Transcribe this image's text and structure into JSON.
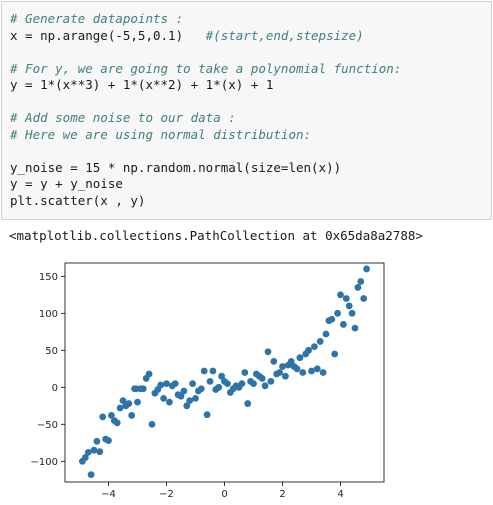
{
  "code_lines": [
    [
      {
        "t": "# Generate datapoints :",
        "c": "cm"
      }
    ],
    [
      {
        "t": "x = np.arange(-5,5,0.1)   ",
        "c": ""
      },
      {
        "t": "#(start,end,stepsize)",
        "c": "cm"
      }
    ],
    [
      {
        "t": "",
        "c": ""
      }
    ],
    [
      {
        "t": "# For y, we are going to take a polynomial function:",
        "c": "cm"
      }
    ],
    [
      {
        "t": "y = 1*(x**3) + 1*(x**2) + 1*(x) + 1",
        "c": ""
      }
    ],
    [
      {
        "t": "",
        "c": ""
      }
    ],
    [
      {
        "t": "# Add some noise to our data :",
        "c": "cm"
      }
    ],
    [
      {
        "t": "# Here we are using normal distribution:",
        "c": "cm"
      }
    ],
    [
      {
        "t": "",
        "c": ""
      }
    ],
    [
      {
        "t": "y_noise = 15 * np.random.normal(size=len(x))",
        "c": ""
      }
    ],
    [
      {
        "t": "y = y + y_noise",
        "c": ""
      }
    ],
    [
      {
        "t": "plt.scatter(x , y)",
        "c": ""
      }
    ]
  ],
  "output_text": "<matplotlib.collections.PathCollection at 0x65da8a2788>",
  "chart_data": {
    "type": "scatter",
    "xlim": [
      -5.5,
      5.5
    ],
    "ylim": [
      -128,
      168
    ],
    "xticks": [
      -4,
      -2,
      0,
      2,
      4
    ],
    "yticks": [
      -100,
      -50,
      0,
      50,
      100,
      150
    ],
    "xtick_labels": [
      "−4",
      "−2",
      "0",
      "2",
      "4"
    ],
    "ytick_labels": [
      "−100",
      "−50",
      "0",
      "50",
      "100",
      "150"
    ],
    "grid": false,
    "point_color": "#2f74a8",
    "points": [
      [
        -4.9,
        -100
      ],
      [
        -4.8,
        -95
      ],
      [
        -4.7,
        -88
      ],
      [
        -4.6,
        -118
      ],
      [
        -4.5,
        -85
      ],
      [
        -4.4,
        -73
      ],
      [
        -4.3,
        -87
      ],
      [
        -4.2,
        -40
      ],
      [
        -4.1,
        -70
      ],
      [
        -4.0,
        -72
      ],
      [
        -3.9,
        -38
      ],
      [
        -3.8,
        -45
      ],
      [
        -3.7,
        -48
      ],
      [
        -3.6,
        -28
      ],
      [
        -3.5,
        -18
      ],
      [
        -3.4,
        -25
      ],
      [
        -3.3,
        -22
      ],
      [
        -3.2,
        -38
      ],
      [
        -3.1,
        -2
      ],
      [
        -3.0,
        -20
      ],
      [
        -2.9,
        -2
      ],
      [
        -2.8,
        -2
      ],
      [
        -2.7,
        12
      ],
      [
        -2.6,
        18
      ],
      [
        -2.5,
        -50
      ],
      [
        -2.4,
        -8
      ],
      [
        -2.3,
        -3
      ],
      [
        -2.2,
        3
      ],
      [
        -2.1,
        -15
      ],
      [
        -2.0,
        5
      ],
      [
        -1.9,
        -20
      ],
      [
        -1.8,
        2
      ],
      [
        -1.7,
        5
      ],
      [
        -1.6,
        -10
      ],
      [
        -1.5,
        -12
      ],
      [
        -1.4,
        -5
      ],
      [
        -1.3,
        -25
      ],
      [
        -1.2,
        -18
      ],
      [
        -1.1,
        5
      ],
      [
        -1.0,
        -15
      ],
      [
        -0.9,
        -5
      ],
      [
        -0.8,
        -2
      ],
      [
        -0.7,
        22
      ],
      [
        -0.6,
        -37
      ],
      [
        -0.5,
        8
      ],
      [
        -0.4,
        22
      ],
      [
        -0.3,
        -3
      ],
      [
        -0.2,
        0
      ],
      [
        -0.1,
        15
      ],
      [
        0.0,
        8
      ],
      [
        0.1,
        5
      ],
      [
        0.2,
        -7
      ],
      [
        0.3,
        -2
      ],
      [
        0.4,
        2
      ],
      [
        0.5,
        0
      ],
      [
        0.6,
        5
      ],
      [
        0.7,
        20
      ],
      [
        0.8,
        -22
      ],
      [
        0.9,
        8
      ],
      [
        1.0,
        5
      ],
      [
        1.1,
        18
      ],
      [
        1.2,
        15
      ],
      [
        1.3,
        12
      ],
      [
        1.4,
        2
      ],
      [
        1.5,
        48
      ],
      [
        1.6,
        8
      ],
      [
        1.7,
        35
      ],
      [
        1.8,
        18
      ],
      [
        1.9,
        20
      ],
      [
        2.0,
        28
      ],
      [
        2.1,
        15
      ],
      [
        2.2,
        30
      ],
      [
        2.3,
        35
      ],
      [
        2.4,
        28
      ],
      [
        2.5,
        25
      ],
      [
        2.6,
        40
      ],
      [
        2.7,
        20
      ],
      [
        2.8,
        45
      ],
      [
        2.9,
        50
      ],
      [
        3.0,
        22
      ],
      [
        3.1,
        55
      ],
      [
        3.2,
        25
      ],
      [
        3.3,
        62
      ],
      [
        3.4,
        20
      ],
      [
        3.5,
        72
      ],
      [
        3.6,
        90
      ],
      [
        3.7,
        92
      ],
      [
        3.8,
        45
      ],
      [
        3.9,
        100
      ],
      [
        4.0,
        125
      ],
      [
        4.1,
        85
      ],
      [
        4.2,
        120
      ],
      [
        4.3,
        110
      ],
      [
        4.4,
        100
      ],
      [
        4.5,
        80
      ],
      [
        4.6,
        135
      ],
      [
        4.7,
        143
      ],
      [
        4.8,
        120
      ],
      [
        4.9,
        160
      ],
      [
        -3.05,
        -2
      ]
    ]
  }
}
